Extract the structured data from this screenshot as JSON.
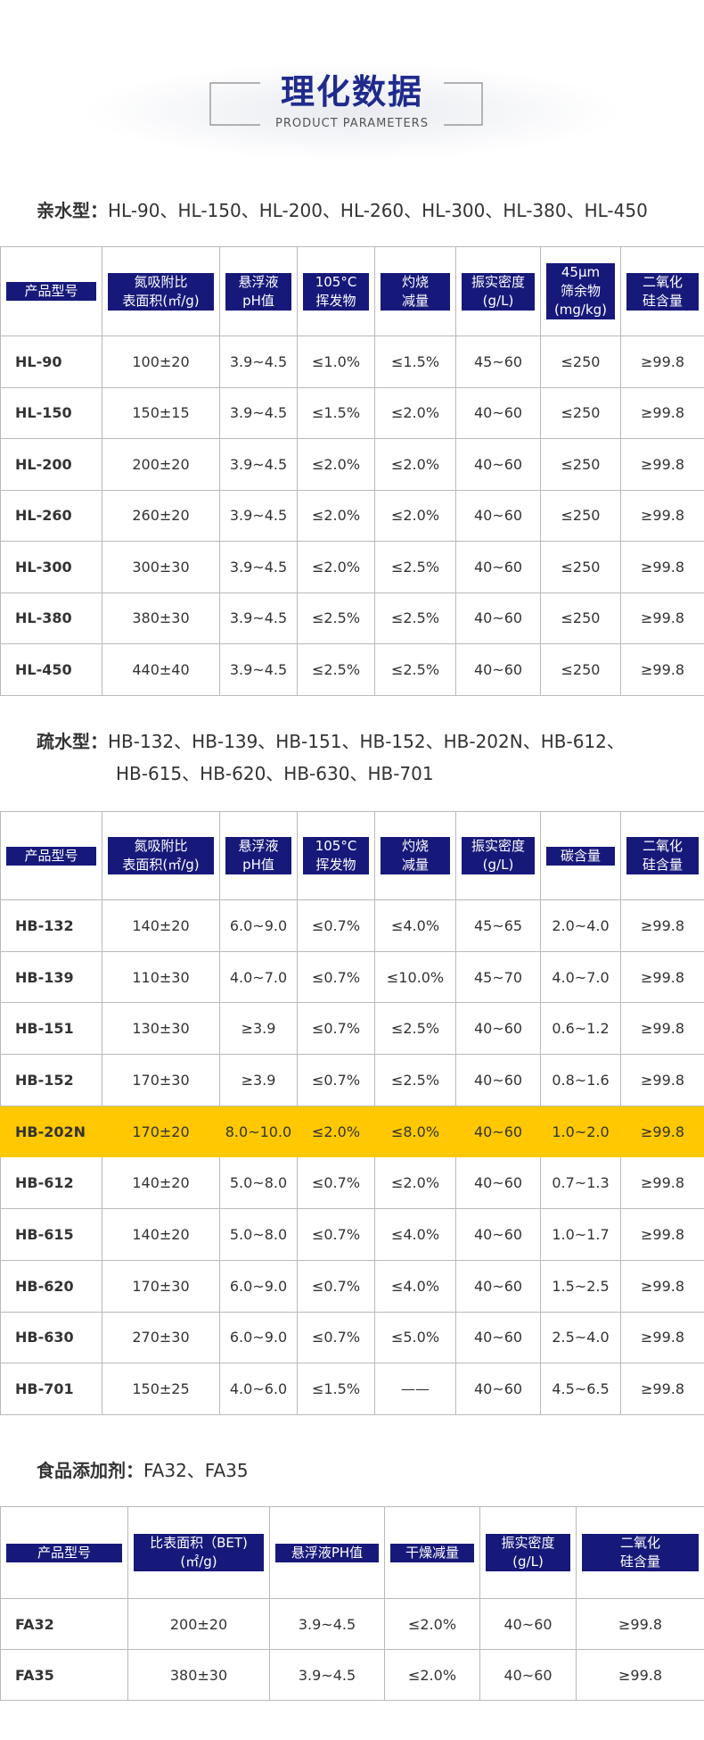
{
  "header": {
    "title": "理化数据",
    "subtitle": "PRODUCT PARAMETERS"
  },
  "sections": [
    {
      "label": "亲水型：",
      "models": [
        "HL-90、HL-150、HL-200、HL-260、HL-300、HL-380、HL-450"
      ],
      "table": {
        "headers": [
          [
            "产品型号"
          ],
          [
            "氮吸附比",
            "表面积(㎡/g)"
          ],
          [
            "悬浮液",
            "pH值"
          ],
          [
            "105°C",
            "挥发物"
          ],
          [
            "灼烧",
            "减量"
          ],
          [
            "振实密度",
            "(g/L)"
          ],
          [
            "45μm",
            "筛余物",
            "(mg/kg)"
          ],
          [
            "二氧化",
            "硅含量"
          ]
        ],
        "rows": [
          [
            "HL-90",
            "100±20",
            "3.9~4.5",
            "≤1.0%",
            "≤1.5%",
            "45~60",
            "≤250",
            "≥99.8"
          ],
          [
            "HL-150",
            "150±15",
            "3.9~4.5",
            "≤1.5%",
            "≤2.0%",
            "40~60",
            "≤250",
            "≥99.8"
          ],
          [
            "HL-200",
            "200±20",
            "3.9~4.5",
            "≤2.0%",
            "≤2.0%",
            "40~60",
            "≤250",
            "≥99.8"
          ],
          [
            "HL-260",
            "260±20",
            "3.9~4.5",
            "≤2.0%",
            "≤2.0%",
            "40~60",
            "≤250",
            "≥99.8"
          ],
          [
            "HL-300",
            "300±30",
            "3.9~4.5",
            "≤2.0%",
            "≤2.5%",
            "40~60",
            "≤250",
            "≥99.8"
          ],
          [
            "HL-380",
            "380±30",
            "3.9~4.5",
            "≤2.5%",
            "≤2.5%",
            "40~60",
            "≤250",
            "≥99.8"
          ],
          [
            "HL-450",
            "440±40",
            "3.9~4.5",
            "≤2.5%",
            "≤2.5%",
            "40~60",
            "≤250",
            "≥99.8"
          ]
        ]
      }
    },
    {
      "label": "疏水型：",
      "models": [
        "HB-132、HB-139、HB-151、HB-152、HB-202N、HB-612、",
        "HB-615、HB-620、HB-630、HB-701"
      ],
      "table": {
        "headers": [
          [
            "产品型号"
          ],
          [
            "氮吸附比",
            "表面积(㎡/g)"
          ],
          [
            "悬浮液",
            "pH值"
          ],
          [
            "105°C",
            "挥发物"
          ],
          [
            "灼烧",
            "减量"
          ],
          [
            "振实密度",
            "(g/L)"
          ],
          [
            "碳含量"
          ],
          [
            "二氧化",
            "硅含量"
          ]
        ],
        "highlighted_row": 4,
        "rows": [
          [
            "HB-132",
            "140±20",
            "6.0~9.0",
            "≤0.7%",
            "≤4.0%",
            "45~65",
            "2.0~4.0",
            "≥99.8"
          ],
          [
            "HB-139",
            "110±30",
            "4.0~7.0",
            "≤0.7%",
            "≤10.0%",
            "45~70",
            "4.0~7.0",
            "≥99.8"
          ],
          [
            "HB-151",
            "130±30",
            "≥3.9",
            "≤0.7%",
            "≤2.5%",
            "40~60",
            "0.6~1.2",
            "≥99.8"
          ],
          [
            "HB-152",
            "170±30",
            "≥3.9",
            "≤0.7%",
            "≤2.5%",
            "40~60",
            "0.8~1.6",
            "≥99.8"
          ],
          [
            "HB-202N",
            "170±20",
            "8.0~10.0",
            "≤2.0%",
            "≤8.0%",
            "40~60",
            "1.0~2.0",
            "≥99.8"
          ],
          [
            "HB-612",
            "140±20",
            "5.0~8.0",
            "≤0.7%",
            "≤2.0%",
            "40~60",
            "0.7~1.3",
            "≥99.8"
          ],
          [
            "HB-615",
            "140±20",
            "5.0~8.0",
            "≤0.7%",
            "≤4.0%",
            "40~60",
            "1.0~1.7",
            "≥99.8"
          ],
          [
            "HB-620",
            "170±30",
            "6.0~9.0",
            "≤0.7%",
            "≤4.0%",
            "40~60",
            "1.5~2.5",
            "≥99.8"
          ],
          [
            "HB-630",
            "270±30",
            "6.0~9.0",
            "≤0.7%",
            "≤5.0%",
            "40~60",
            "2.5~4.0",
            "≥99.8"
          ],
          [
            "HB-701",
            "150±25",
            "4.0~6.0",
            "≤1.5%",
            "——",
            "40~60",
            "4.5~6.5",
            "≥99.8"
          ]
        ]
      }
    },
    {
      "label": "食品添加剂：",
      "models": [
        "FA32、FA35"
      ],
      "table": {
        "headers": [
          [
            "产品型号"
          ],
          [
            "比表面积（BET)",
            "(㎡/g)"
          ],
          [
            "悬浮液PH值"
          ],
          [
            "干燥减量"
          ],
          [
            "振实密度",
            "(g/L)"
          ],
          [
            "二氧化",
            "硅含量"
          ]
        ],
        "rows": [
          [
            "FA32",
            "200±20",
            "3.9~4.5",
            "≤2.0%",
            "40~60",
            "≥99.8"
          ],
          [
            "FA35",
            "380±30",
            "3.9~4.5",
            "≤2.0%",
            "40~60",
            "≥99.8"
          ]
        ]
      }
    }
  ]
}
